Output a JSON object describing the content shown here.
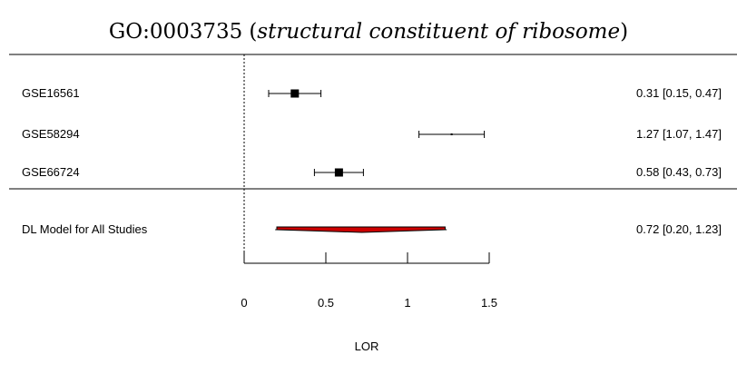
{
  "title": {
    "id": "GO:0003735",
    "open_paren": "(",
    "description": "structural constituent of ribosome",
    "close_paren": ")"
  },
  "chart_data": {
    "type": "forest",
    "title": "GO:0003735 (structural constituent of ribosome)",
    "xlabel": "LOR",
    "xlim": [
      0,
      1.5
    ],
    "xticks": [
      0,
      0.5,
      1,
      1.5
    ],
    "xtick_labels": [
      "0",
      "0.5",
      "1",
      "1.5"
    ],
    "reference_line": 0,
    "studies": [
      {
        "label": "GSE16561",
        "estimate": 0.31,
        "ci_low": 0.15,
        "ci_high": 0.47,
        "text": "0.31 [0.15, 0.47]",
        "weight": 1.0
      },
      {
        "label": "GSE58294",
        "estimate": 1.27,
        "ci_low": 1.07,
        "ci_high": 1.47,
        "text": "1.27 [1.07, 1.47]",
        "weight": 0.05
      },
      {
        "label": "GSE66724",
        "estimate": 0.58,
        "ci_low": 0.43,
        "ci_high": 0.73,
        "text": "0.58 [0.43, 0.73]",
        "weight": 1.0
      }
    ],
    "summary": {
      "label": "DL Model for All Studies",
      "estimate": 0.72,
      "ci_low": 0.2,
      "ci_high": 1.23,
      "text": "0.72 [0.20, 1.23]",
      "prediction_low": 0.19,
      "prediction_high": 1.24,
      "color": "#cc0000"
    },
    "colors": {
      "marker": "#000000",
      "summary_fill": "#cc0000"
    }
  }
}
